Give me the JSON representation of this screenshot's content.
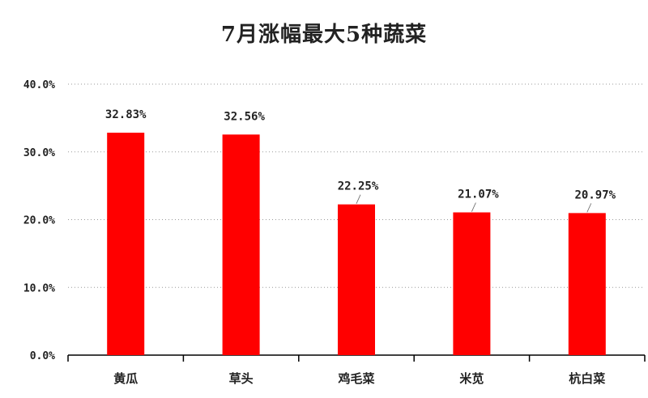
{
  "chart_data": {
    "type": "bar",
    "title": "7月涨幅最大5种蔬菜",
    "categories": [
      "黄瓜",
      "草头",
      "鸡毛菜",
      "米苋",
      "杭白菜"
    ],
    "values": [
      32.83,
      32.56,
      22.25,
      21.07,
      20.97
    ],
    "data_labels": [
      "32.83%",
      "32.56%",
      "22.25%",
      "21.07%",
      "20.97%"
    ],
    "y_ticks": [
      0,
      10,
      20,
      30,
      40
    ],
    "y_tick_labels": [
      "0.0%",
      "10.0%",
      "20.0%",
      "30.0%",
      "40.0%"
    ],
    "ylim": [
      0,
      40
    ],
    "xlabel": "",
    "ylabel": "",
    "grid": true,
    "legend": "none",
    "colors": {
      "bar": "#ff0000",
      "grid": "#999999",
      "axis": "#000000",
      "text": "#222222"
    }
  }
}
